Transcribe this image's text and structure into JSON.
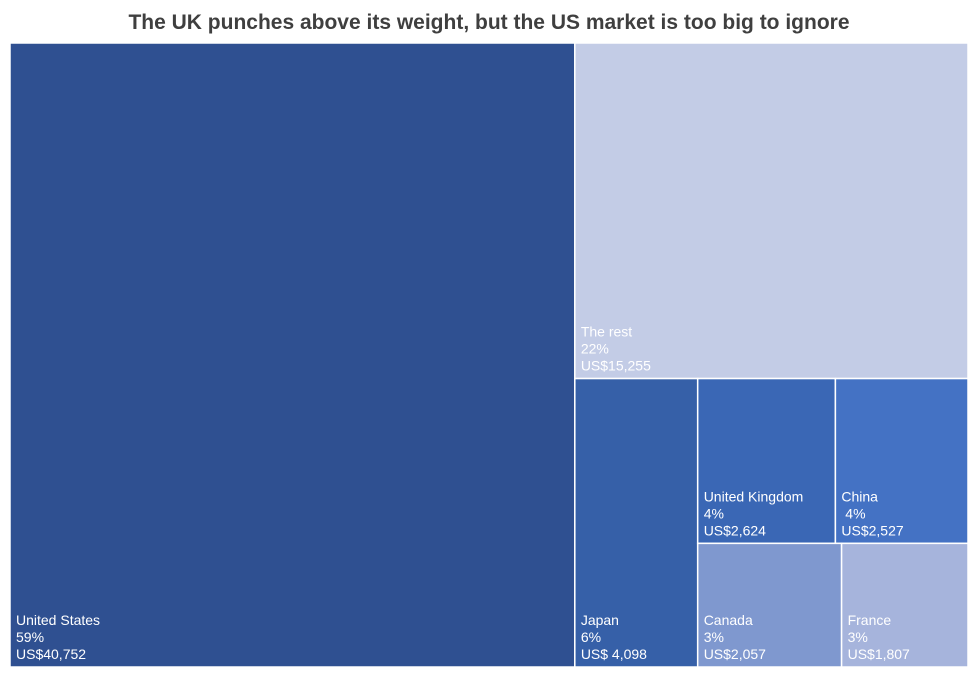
{
  "chart_data": {
    "type": "treemap",
    "title": "The UK punches above its weight, but the US market is too big to ignore",
    "categories": [
      "United States",
      "The rest",
      "Japan",
      "United Kingdom",
      "China",
      "Canada",
      "France"
    ],
    "values": [
      40752,
      15255,
      4098,
      2624,
      2527,
      2057,
      1807
    ],
    "value_labels": [
      "US$40,752",
      "US$15,255",
      "US$ 4,098",
      "US$2,624",
      "US$2,527",
      "US$2,057",
      "US$1,807"
    ],
    "percent_labels": [
      "59%",
      "22%",
      "6%",
      "4%",
      " 4%",
      "3%",
      "3%"
    ],
    "colors": [
      "#2f5091",
      "#c3cce6",
      "#3660a8",
      "#3a67b5",
      "#4472c4",
      "#7f98cf",
      "#a6b4dc"
    ]
  }
}
